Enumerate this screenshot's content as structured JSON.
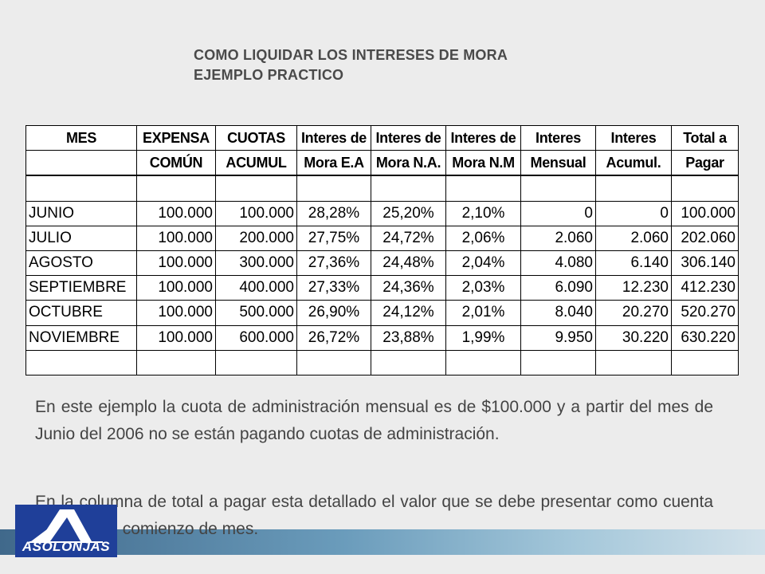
{
  "title": {
    "line1": "COMO LIQUIDAR LOS INTERESES DE MORA",
    "line2": "EJEMPLO PRACTICO"
  },
  "table": {
    "header_row1": [
      "MES",
      "EXPENSA",
      "CUOTAS",
      "Interes de",
      "Interes de",
      "Interes de",
      "Interes",
      "Interes",
      "Total a"
    ],
    "header_row2": [
      "",
      "COMÚN",
      "ACUMUL",
      "Mora E.A",
      "Mora N.A.",
      "Mora N.M",
      "Mensual",
      "Acumul.",
      "Pagar"
    ],
    "rows": [
      [
        "JUNIO",
        "100.000",
        "100.000",
        "28,28%",
        "25,20%",
        "2,10%",
        "0",
        "0",
        "100.000"
      ],
      [
        "JULIO",
        "100.000",
        "200.000",
        "27,75%",
        "24,72%",
        "2,06%",
        "2.060",
        "2.060",
        "202.060"
      ],
      [
        "AGOSTO",
        "100.000",
        "300.000",
        "27,36%",
        "24,48%",
        "2,04%",
        "4.080",
        "6.140",
        "306.140"
      ],
      [
        "SEPTIEMBRE",
        "100.000",
        "400.000",
        "27,33%",
        "24,36%",
        "2,03%",
        "6.090",
        "12.230",
        "412.230"
      ],
      [
        "OCTUBRE",
        "100.000",
        "500.000",
        "26,90%",
        "24,12%",
        "2,01%",
        "8.040",
        "20.270",
        "520.270"
      ],
      [
        "NOVIEMBRE",
        "100.000",
        "600.000",
        "26,72%",
        "23,88%",
        "1,99%",
        "9.950",
        "30.220",
        "630.220"
      ]
    ]
  },
  "paragraphs": {
    "p1": "En este ejemplo la cuota de administración mensual es de $100.000 y a partir del mes de Junio del 2006 no se están pagando cuotas de administración.",
    "p2": "En la columna de total a pagar esta detallado el valor que se debe presentar  como cuenta de cobro al comienzo de mes."
  },
  "logo": {
    "text": "ASOLONJAS",
    "icon": "asolonjas-logo-icon",
    "color": "#1f3f99"
  },
  "colors": {
    "background": "#ececec",
    "title": "#4a4a4a",
    "body_text": "#444444",
    "bar_start": "#2d5a80",
    "bar_end": "#cfe0ea"
  }
}
